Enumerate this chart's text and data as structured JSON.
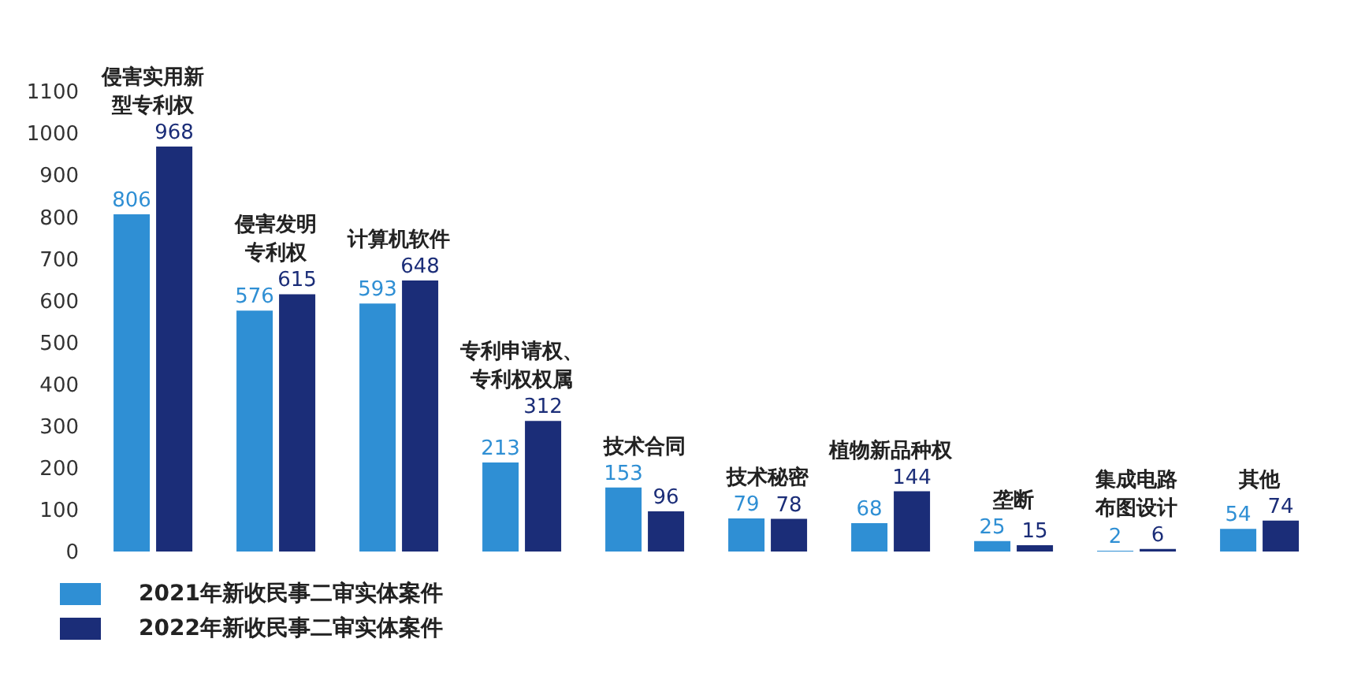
{
  "chart_data": {
    "type": "bar",
    "categories": [
      "侵害实用新型专利权",
      "侵害发明专利权",
      "计算机软件",
      "专利申请权、专利权权属",
      "技术合同",
      "技术秘密",
      "植物新品种权",
      "垄断",
      "集成电路布图设计",
      "其他"
    ],
    "series": [
      {
        "name": "2021年新收民事二审实体案件",
        "color": "#2f8fd4",
        "values": [
          806,
          576,
          593,
          213,
          153,
          79,
          68,
          25,
          2,
          54
        ]
      },
      {
        "name": "2022年新收民事二审实体案件",
        "color": "#1b2d78",
        "values": [
          968,
          615,
          648,
          312,
          96,
          78,
          144,
          15,
          6,
          74
        ]
      }
    ],
    "ylim": [
      0,
      1100
    ],
    "yticks": [
      0,
      100,
      200,
      300,
      400,
      500,
      600,
      700,
      800,
      900,
      1000,
      1100
    ],
    "data_labels": true,
    "legend": "bottom left",
    "grid": false
  }
}
